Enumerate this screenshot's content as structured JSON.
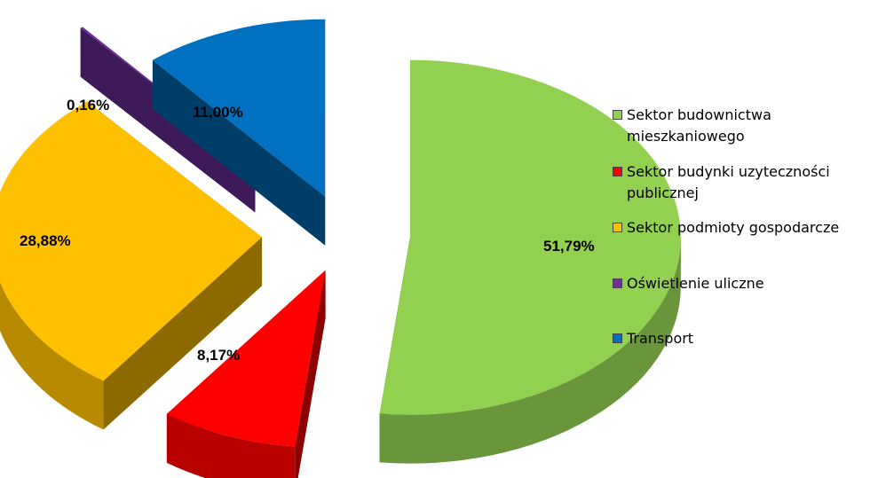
{
  "chart_data": {
    "type": "pie",
    "style": "3d-exploded",
    "slices": [
      {
        "name": "Sektor budownictwa mieszkaniowego",
        "value": 51.79,
        "label": "51,79%",
        "color": "#92D050"
      },
      {
        "name": "Sektor budynki uzyteczności publicznej",
        "value": 8.17,
        "label": "8,17%",
        "color": "#FF0000"
      },
      {
        "name": "Sektor podmioty gospodarcze",
        "value": 28.88,
        "label": "28,88%",
        "color": "#FFC000"
      },
      {
        "name": "Oświetlenie uliczne",
        "value": 0.16,
        "label": "0,16%",
        "color": "#7030A0"
      },
      {
        "name": "Transport",
        "value": 11.0,
        "label": "11,00%",
        "color": "#0070C0"
      }
    ],
    "legend_position": "right"
  },
  "legend": {
    "items": [
      {
        "line1": "Sektor budownictwa",
        "line2": "mieszkaniowego",
        "color": "#92D050"
      },
      {
        "line1": "Sektor budynki uzyteczności",
        "line2": "publicznej",
        "color": "#FF0000"
      },
      {
        "line1": "Sektor podmioty gospodarcze",
        "line2": "",
        "color": "#FFC000"
      },
      {
        "line1": "Oświetlenie uliczne",
        "line2": "",
        "color": "#7030A0"
      },
      {
        "line1": "Transport",
        "line2": "",
        "color": "#0070C0"
      }
    ]
  }
}
